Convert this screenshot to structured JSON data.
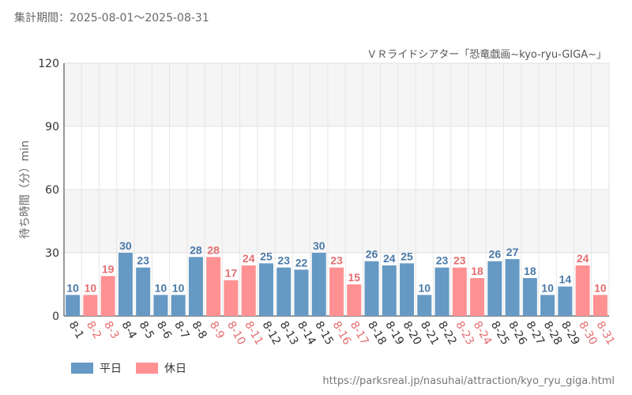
{
  "period_text": "集計期間：2025-08-01～2025-08-31",
  "subtitle": "ＶＲライドシアター「恐竜戯画~kyo-ryu-GIGA~」",
  "source_url": "https://parksreal.jp/nasuhai/attraction/kyo_ryu_giga.html",
  "legend": {
    "weekday": {
      "label": "平日",
      "color": "#6699c4"
    },
    "holiday": {
      "label": "休日",
      "color": "#ff9193"
    }
  },
  "colors": {
    "holiday_label": "#e46e70",
    "weekday_label": "#4a7aa8"
  },
  "chart_data": {
    "type": "bar",
    "ylabel": "待ち時間（分）min",
    "ylim": [
      0,
      120
    ],
    "yticks": [
      0,
      30,
      60,
      90,
      120
    ],
    "grid": true,
    "categories": [
      "8-1",
      "8-2",
      "8-3",
      "8-4",
      "8-5",
      "8-6",
      "8-7",
      "8-8",
      "8-9",
      "8-10",
      "8-11",
      "8-12",
      "8-13",
      "8-14",
      "8-15",
      "8-16",
      "8-17",
      "8-18",
      "8-19",
      "8-20",
      "8-21",
      "8-22",
      "8-23",
      "8-24",
      "8-25",
      "8-26",
      "8-27",
      "8-28",
      "8-29",
      "8-30",
      "8-31"
    ],
    "values": [
      10,
      10,
      19,
      30,
      23,
      10,
      10,
      28,
      28,
      17,
      24,
      25,
      23,
      22,
      30,
      23,
      15,
      26,
      24,
      25,
      10,
      23,
      23,
      18,
      26,
      27,
      18,
      10,
      14,
      24,
      10
    ],
    "day_type": [
      "weekday",
      "holiday",
      "holiday",
      "weekday",
      "weekday",
      "weekday",
      "weekday",
      "weekday",
      "holiday",
      "holiday",
      "holiday",
      "weekday",
      "weekday",
      "weekday",
      "weekday",
      "holiday",
      "holiday",
      "weekday",
      "weekday",
      "weekday",
      "weekday",
      "weekday",
      "holiday",
      "holiday",
      "weekday",
      "weekday",
      "weekday",
      "weekday",
      "weekday",
      "holiday",
      "holiday"
    ]
  }
}
